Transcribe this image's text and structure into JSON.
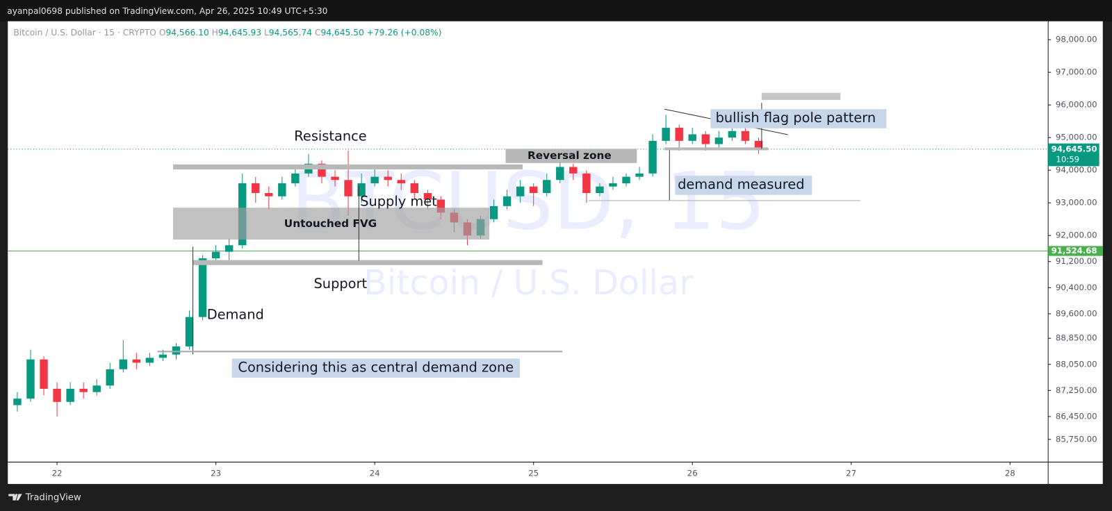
{
  "header": {
    "publisher_line": "ayanpal0698 published on TradingView.com, Apr 26, 2025 10:49 UTC+5:30"
  },
  "chart_data": {
    "type": "candlestick",
    "symbol": "Bitcoin / U.S. Dollar · 15 · CRYPTO",
    "ohlc_legend": [
      {
        "key": "O",
        "value": "94,566.10"
      },
      {
        "key": "H",
        "value": "94,645.93"
      },
      {
        "key": "L",
        "value": "94,565.74"
      },
      {
        "key": "C",
        "value": "94,645.50"
      }
    ],
    "change": "+79.26 (+0.08%)",
    "watermark": [
      "BTCUSD, 15",
      "Bitcoin / U.S. Dollar"
    ],
    "up_color": "#089981",
    "down_color": "#f23645",
    "x": [
      21.75,
      21.8333,
      21.9167,
      22,
      22.0833,
      22.1667,
      22.25,
      22.3333,
      22.4167,
      22.5,
      22.5833,
      22.6667,
      22.75,
      22.8333,
      22.9167,
      23,
      23.0833,
      23.1667,
      23.25,
      23.3333,
      23.4167,
      23.5,
      23.5833,
      23.6667,
      23.75,
      23.8333,
      23.9167,
      24,
      24.0833,
      24.1667,
      24.25,
      24.3333,
      24.4167,
      24.5,
      24.5833,
      24.6667,
      24.75,
      24.8333,
      24.9167,
      25,
      25.0833,
      25.1667,
      25.25,
      25.3333,
      25.4167,
      25.5,
      25.5833,
      25.6667,
      25.75,
      25.8333,
      25.9167,
      26,
      26.0833,
      26.1667,
      26.25,
      26.3333,
      26.4167
    ],
    "open": [
      86800,
      87000,
      88200,
      87300,
      86900,
      87300,
      87200,
      87400,
      87900,
      88200,
      88100,
      88250,
      88350,
      88600,
      89500,
      91300,
      91500,
      91700,
      93600,
      93300,
      93200,
      93600,
      93900,
      94200,
      93800,
      93700,
      93200,
      93600,
      93800,
      93700,
      93600,
      93300,
      93100,
      92700,
      92400,
      92000,
      92500,
      92900,
      93200,
      93500,
      93300,
      93700,
      94100,
      93900,
      93300,
      93500,
      93600,
      93800,
      93900,
      94900,
      95300,
      94900,
      95100,
      94800,
      95000,
      95200,
      94900
    ],
    "high": [
      87200,
      88500,
      88300,
      87500,
      87500,
      87500,
      87600,
      88100,
      88800,
      88400,
      88400,
      88500,
      88700,
      89700,
      91400,
      91700,
      91900,
      93900,
      93800,
      93500,
      93800,
      94100,
      94500,
      94300,
      94000,
      94600,
      93900,
      94100,
      94000,
      93900,
      93700,
      93400,
      93200,
      92800,
      92500,
      92600,
      93100,
      93400,
      93700,
      93600,
      93900,
      94300,
      94200,
      94000,
      93600,
      93800,
      93900,
      94100,
      95100,
      95700,
      95400,
      95300,
      95200,
      95200,
      95300,
      95300,
      95000
    ],
    "low": [
      86600,
      86900,
      87100,
      86450,
      86800,
      87000,
      87100,
      87300,
      87800,
      87900,
      88000,
      88150,
      88200,
      88500,
      89400,
      91100,
      91200,
      91600,
      93000,
      92800,
      93100,
      93500,
      93800,
      93600,
      93500,
      92600,
      93000,
      93500,
      93500,
      93400,
      93100,
      92800,
      92500,
      92100,
      91700,
      91900,
      92400,
      92800,
      93000,
      92900,
      93200,
      93600,
      93700,
      93000,
      93200,
      93400,
      93500,
      93700,
      93800,
      94800,
      94600,
      94800,
      94600,
      94700,
      94900,
      94800,
      94500
    ],
    "close": [
      87000,
      88200,
      87300,
      86900,
      87300,
      87200,
      87400,
      87900,
      88200,
      88100,
      88250,
      88350,
      88600,
      89500,
      91300,
      91500,
      91700,
      93600,
      93300,
      93200,
      93600,
      93900,
      94200,
      93800,
      93700,
      93200,
      93600,
      93800,
      93700,
      93600,
      93300,
      93100,
      92700,
      92400,
      92000,
      92500,
      92900,
      93200,
      93500,
      93300,
      93700,
      94100,
      93900,
      93300,
      93500,
      93600,
      93800,
      93900,
      94900,
      95300,
      94900,
      95100,
      94800,
      95000,
      95200,
      94900,
      94645.5
    ],
    "xlim": [
      21.69,
      28.24
    ],
    "xticks": [
      22,
      23,
      24,
      25,
      26,
      27,
      28
    ],
    "ylim": [
      85054,
      98565
    ],
    "yticks": [
      {
        "value": 98000,
        "label": "98,000.00"
      },
      {
        "value": 97000,
        "label": "97,000.00"
      },
      {
        "value": 96000,
        "label": "96,000.00"
      },
      {
        "value": 95000,
        "label": "95,000.00"
      },
      {
        "value": 94000,
        "label": "94,000.00"
      },
      {
        "value": 93000,
        "label": "93,000.00"
      },
      {
        "value": 92000,
        "label": "92,000.00"
      },
      {
        "value": 91200,
        "label": "91,200.00"
      },
      {
        "value": 90400,
        "label": "90,400.00"
      },
      {
        "value": 89600,
        "label": "89,600.00"
      },
      {
        "value": 88850,
        "label": "88,850.00"
      },
      {
        "value": 88050,
        "label": "88,050.00"
      },
      {
        "value": 87250,
        "label": "87,250.00"
      },
      {
        "value": 86450,
        "label": "86,450.00"
      },
      {
        "value": 85750,
        "label": "85,750.00"
      }
    ],
    "last_price": {
      "value": 94645.5,
      "label": "94,645.50",
      "countdown": "10:59"
    },
    "price_line": {
      "value": 91524.68,
      "label": "91,524.68"
    },
    "annotations": [
      "Resistance",
      "Supply met",
      "Untouched FVG",
      "Support",
      "Demand",
      "Considering this as central demand zone",
      "Reversal zone",
      "demand measured",
      "bullish flag pole pattern"
    ]
  },
  "footer": {
    "brand": "TradingView"
  }
}
